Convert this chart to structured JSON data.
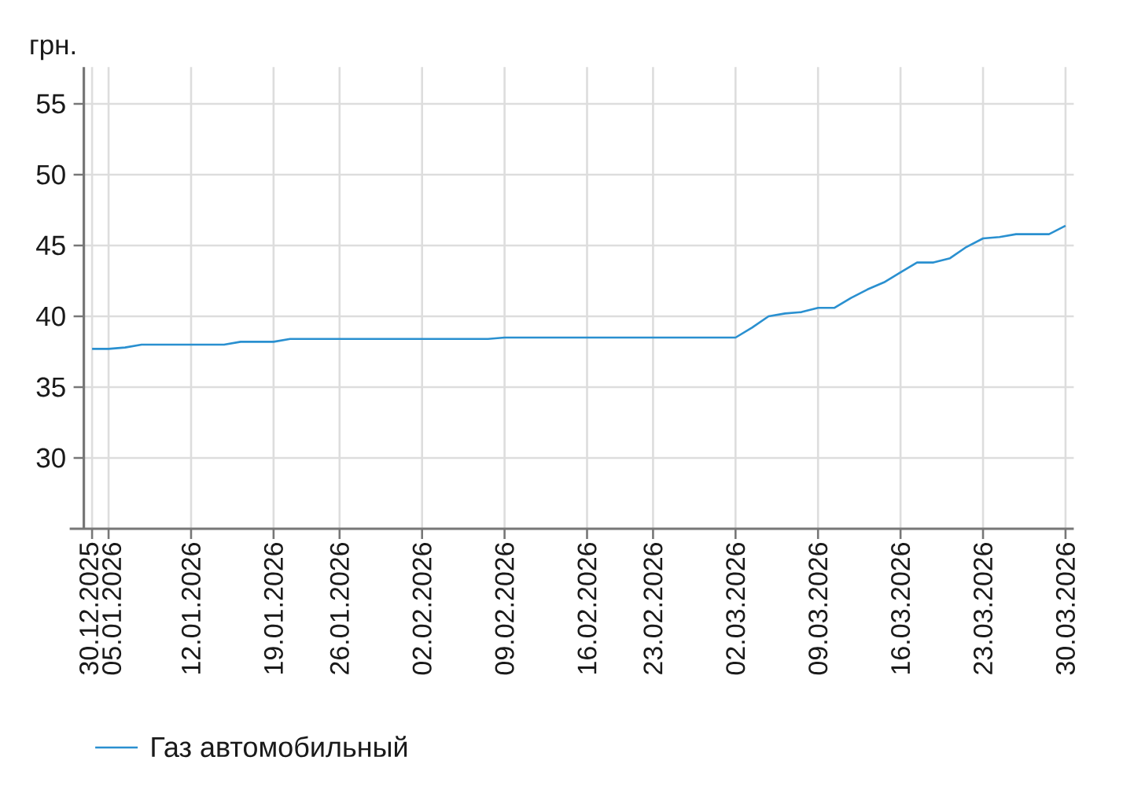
{
  "chart_data": {
    "type": "line",
    "ylabel": "грн.",
    "categories": [
      "30.12.2025",
      "05.01.2026",
      null,
      null,
      null,
      null,
      "12.01.2026",
      null,
      null,
      null,
      null,
      "19.01.2026",
      null,
      null,
      null,
      "26.01.2026",
      null,
      null,
      null,
      null,
      "02.02.2026",
      null,
      null,
      null,
      null,
      "09.02.2026",
      null,
      null,
      null,
      null,
      "16.02.2026",
      null,
      null,
      null,
      "23.02.2026",
      null,
      null,
      null,
      null,
      "02.03.2026",
      null,
      null,
      null,
      null,
      "09.03.2026",
      null,
      null,
      null,
      null,
      "16.03.2026",
      null,
      null,
      null,
      null,
      "23.03.2026",
      null,
      null,
      null,
      null,
      "30.03.2026"
    ],
    "series": [
      {
        "name": "Газ автомобильный",
        "color": "#2a90d0",
        "values": [
          37.7,
          37.7,
          37.8,
          38.0,
          38.0,
          38.0,
          38.0,
          38.0,
          38.0,
          38.2,
          38.2,
          38.2,
          38.4,
          38.4,
          38.4,
          38.4,
          38.4,
          38.4,
          38.4,
          38.4,
          38.4,
          38.4,
          38.4,
          38.4,
          38.4,
          38.5,
          38.5,
          38.5,
          38.5,
          38.5,
          38.5,
          38.5,
          38.5,
          38.5,
          38.5,
          38.5,
          38.5,
          38.5,
          38.5,
          38.5,
          39.2,
          40.0,
          40.2,
          40.3,
          40.6,
          40.6,
          41.3,
          41.9,
          42.4,
          43.1,
          43.8,
          43.8,
          44.1,
          44.9,
          45.5,
          45.6,
          45.8,
          45.8,
          45.8,
          46.4
        ]
      }
    ],
    "ylim": [
      25,
      57.6
    ],
    "yticks": [
      30,
      35,
      40,
      45,
      50,
      55
    ],
    "grid": true,
    "legend": "bottom"
  }
}
